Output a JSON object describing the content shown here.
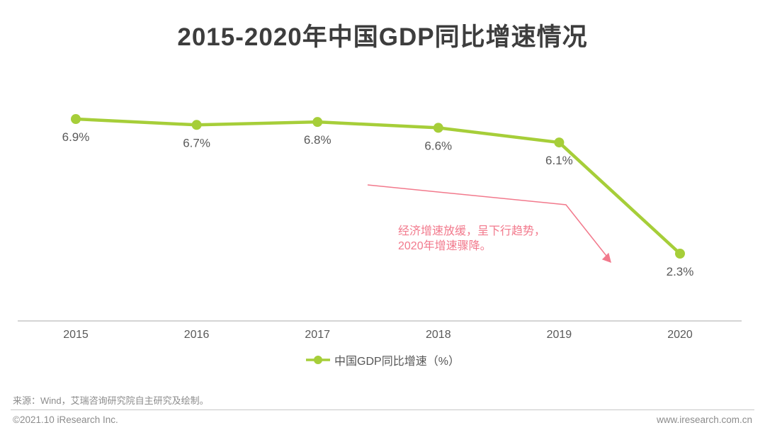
{
  "title": "2015-2020年中国GDP同比增速情况",
  "chart_data": {
    "type": "line",
    "categories": [
      "2015",
      "2016",
      "2017",
      "2018",
      "2019",
      "2020"
    ],
    "series": [
      {
        "name": "中国GDP同比增速（%）",
        "values": [
          6.9,
          6.7,
          6.8,
          6.6,
          6.1,
          2.3
        ]
      }
    ],
    "point_labels": [
      "6.9%",
      "6.7%",
      "6.8%",
      "6.6%",
      "6.1%",
      "2.3%"
    ],
    "xlabel": "",
    "ylabel": "",
    "ylim": [
      0,
      11
    ],
    "grid": false,
    "legend_position": "bottom",
    "annotation": {
      "line1": "经济增速放缓，呈下行趋势，",
      "line2": "2020年增速骤降。"
    }
  },
  "legend": {
    "label": "中国GDP同比增速（%）"
  },
  "source": "来源：Wind，艾瑞咨询研究院自主研究及绘制。",
  "footer": {
    "left": "©2021.10 iResearch Inc.",
    "right": "www.iresearch.com.cn"
  },
  "colors": {
    "line": "#a6ce39",
    "annotation": "#f2798c",
    "title": "#3d3d3d",
    "label": "#595959",
    "axis": "#d4d4d4",
    "muted": "#8c8c8c"
  }
}
